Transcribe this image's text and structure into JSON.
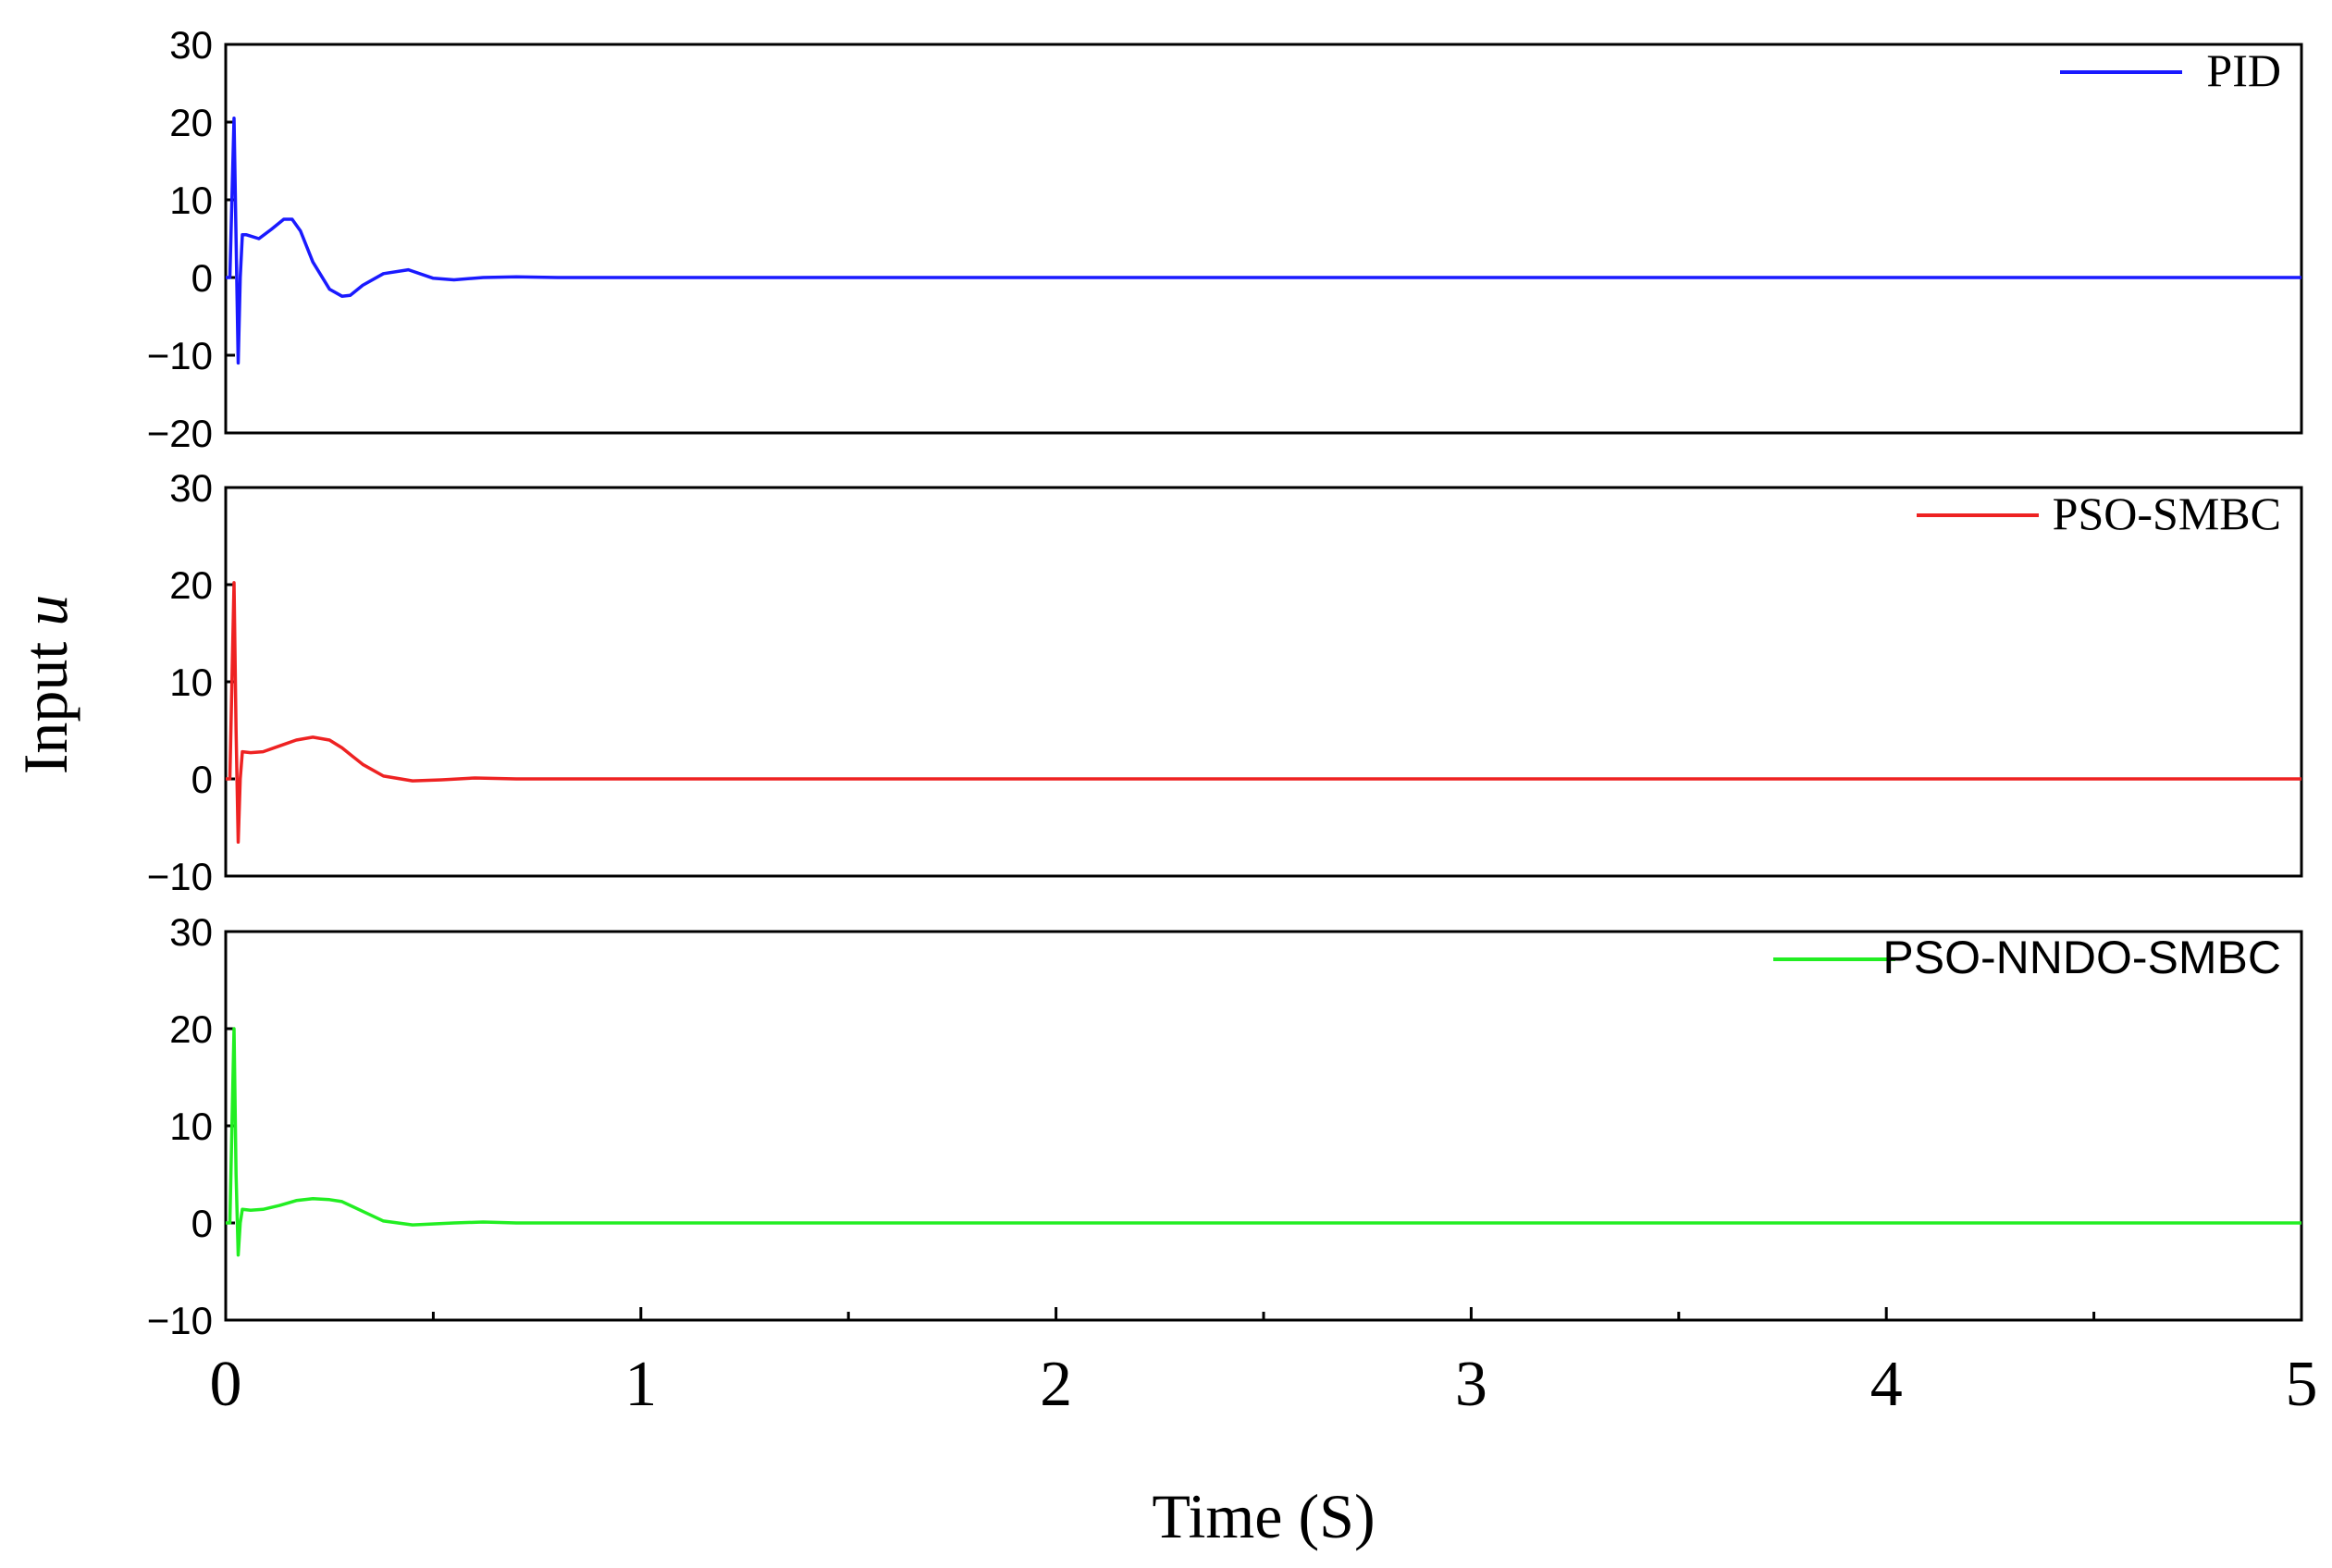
{
  "chart_data": [
    {
      "type": "line",
      "panel": "top",
      "ylim": [
        -20,
        30
      ],
      "yticks": [
        -20,
        -10,
        0,
        10,
        20,
        30
      ],
      "ytick_labels": [
        "−20",
        "−10",
        "0",
        "10",
        "20",
        "30"
      ],
      "legend": "PID",
      "legend_position": "top-right",
      "color": "#1a1aff",
      "x": [
        0,
        0.01,
        0.02,
        0.025,
        0.03,
        0.035,
        0.04,
        0.05,
        0.08,
        0.11,
        0.14,
        0.16,
        0.18,
        0.21,
        0.25,
        0.28,
        0.3,
        0.33,
        0.38,
        0.44,
        0.5,
        0.55,
        0.62,
        0.7,
        0.8,
        1.0,
        5.0
      ],
      "values": [
        0,
        0,
        20.5,
        5,
        -11,
        0,
        5.5,
        5.5,
        5,
        6.2,
        7.5,
        7.5,
        6,
        2,
        -1.5,
        -2.4,
        -2.3,
        -1,
        0.5,
        1,
        -0.1,
        -0.3,
        0,
        0.1,
        0,
        0,
        0
      ]
    },
    {
      "type": "line",
      "panel": "middle",
      "ylim": [
        -10,
        30
      ],
      "yticks": [
        -10,
        0,
        10,
        20,
        30
      ],
      "ytick_labels": [
        "−10",
        "0",
        "10",
        "20",
        "30"
      ],
      "legend": "PSO-SMBC",
      "legend_position": "top-right",
      "color": "#ee2222",
      "x": [
        0,
        0.01,
        0.02,
        0.025,
        0.03,
        0.035,
        0.04,
        0.06,
        0.09,
        0.13,
        0.17,
        0.21,
        0.25,
        0.28,
        0.33,
        0.38,
        0.45,
        0.52,
        0.6,
        0.7,
        1.0,
        5.0
      ],
      "values": [
        0,
        0,
        20.2,
        5,
        -6.5,
        0,
        2.8,
        2.7,
        2.8,
        3.4,
        4.0,
        4.3,
        4.0,
        3.2,
        1.5,
        0.3,
        -0.2,
        -0.1,
        0.1,
        0,
        0,
        0
      ]
    },
    {
      "type": "line",
      "panel": "bottom",
      "ylim": [
        -10,
        30
      ],
      "yticks": [
        -10,
        0,
        10,
        20,
        30
      ],
      "ytick_labels": [
        "−10",
        "0",
        "10",
        "20",
        "30"
      ],
      "legend": "PSO-NNDO-SMBC",
      "legend_position": "top-right",
      "color": "#22ee22",
      "x": [
        0,
        0.01,
        0.02,
        0.025,
        0.03,
        0.035,
        0.04,
        0.06,
        0.09,
        0.13,
        0.17,
        0.21,
        0.25,
        0.28,
        0.33,
        0.38,
        0.45,
        0.55,
        0.62,
        0.7,
        1.0,
        5.0
      ],
      "values": [
        0,
        0,
        20,
        5,
        -3.3,
        0,
        1.4,
        1.3,
        1.4,
        1.8,
        2.3,
        2.5,
        2.4,
        2.2,
        1.2,
        0.2,
        -0.2,
        0,
        0.1,
        0,
        0,
        0
      ]
    }
  ],
  "shared": {
    "xlim": [
      0,
      5
    ],
    "xticks_major": [
      0,
      1,
      2,
      3,
      4,
      5
    ],
    "xtick_labels": [
      "0",
      "1",
      "2",
      "3",
      "4",
      "5"
    ],
    "xticks_minor": [
      0.5,
      1.5,
      2.5,
      3.5,
      4.5
    ],
    "xlabel": "Time (S)",
    "ylabel_prefix": "Input ",
    "ylabel_var": "u"
  }
}
